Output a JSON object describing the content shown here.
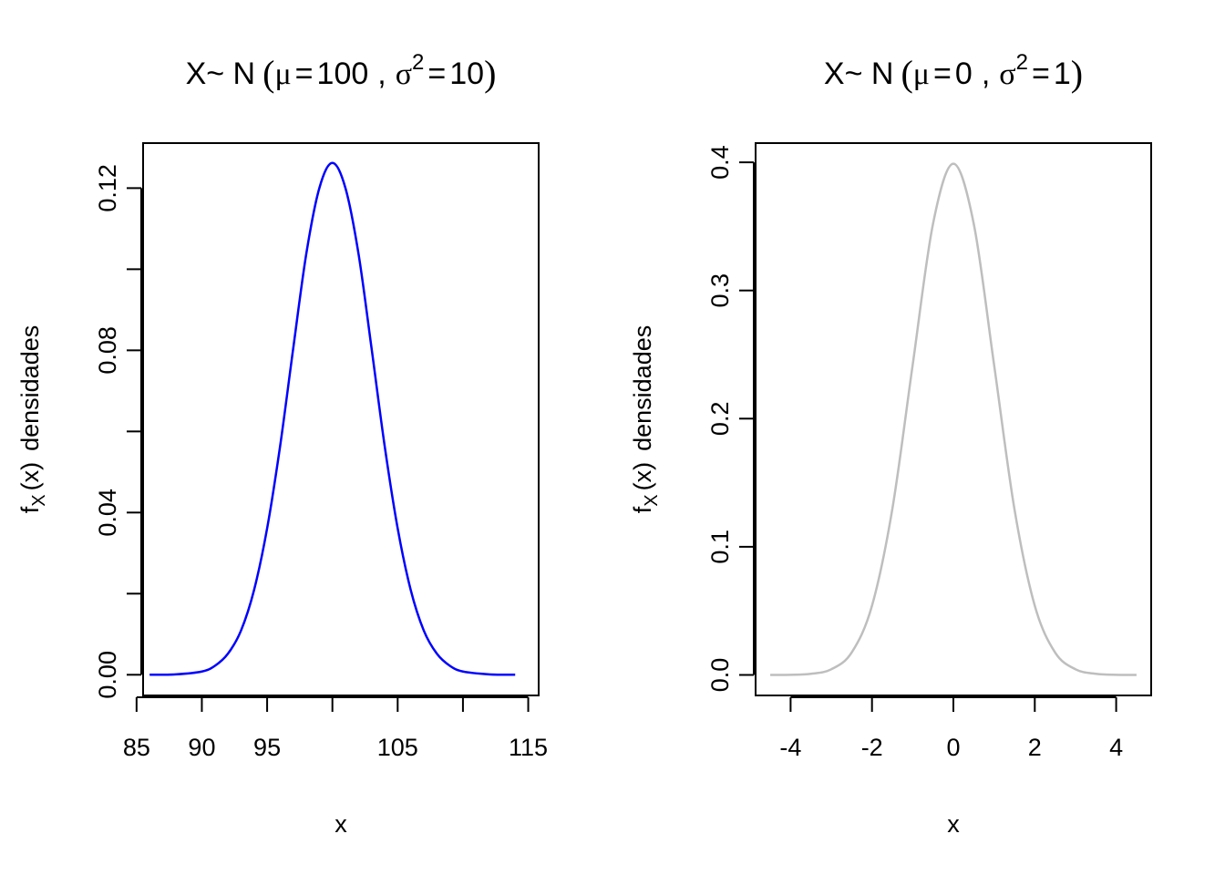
{
  "chart_data": [
    {
      "type": "line",
      "title": {
        "prefix": "X~ N",
        "open": "(",
        "mu_sym": "μ",
        "eq1": "=",
        "mu_val": "100",
        "comma": ",",
        "sigma_sym": "σ",
        "sup": "2",
        "eq2": "=",
        "sigma_val": "10",
        "close": ")"
      },
      "xlabel": "x",
      "ylabel": {
        "f": "f",
        "sub": "X",
        "arg": "(x)",
        "word": "densidades"
      },
      "xlim": [
        85.5,
        115.8
      ],
      "ylim": [
        -0.0051,
        0.1311
      ],
      "xticks": [
        85,
        90,
        95,
        100,
        105,
        110,
        115
      ],
      "xtick_labels": [
        "85",
        "90",
        "95",
        "",
        "105",
        "",
        "115"
      ],
      "yticks": [
        0,
        0.02,
        0.04,
        0.06,
        0.08,
        0.1,
        0.12
      ],
      "ytick_labels": [
        "0.00",
        "",
        "0.04",
        "",
        "0.08",
        "",
        "0.12"
      ],
      "series": [
        {
          "color": "#0000ff",
          "x": [
            86.0,
            88.0,
            90.0,
            91.0,
            92.0,
            93.0,
            94.0,
            95.0,
            96.0,
            97.0,
            98.0,
            99.0,
            100.0,
            101.0,
            102.0,
            103.0,
            104.0,
            105.0,
            106.0,
            107.0,
            108.0,
            109.0,
            110.0,
            112.0,
            114.0
          ],
          "y": [
            0.0,
            0.0001,
            0.0008,
            0.0022,
            0.0052,
            0.0109,
            0.0209,
            0.0361,
            0.0565,
            0.0805,
            0.1038,
            0.12,
            0.1262,
            0.12,
            0.1038,
            0.0805,
            0.0565,
            0.0361,
            0.0209,
            0.0109,
            0.0052,
            0.0022,
            0.0008,
            0.0001,
            0.0
          ]
        }
      ]
    },
    {
      "type": "line",
      "title": {
        "prefix": "X~ N",
        "open": "(",
        "mu_sym": "μ",
        "eq1": "=",
        "mu_val": "0",
        "comma": ",",
        "sigma_sym": "σ",
        "sup": "2",
        "eq2": "=",
        "sigma_val": "1",
        "close": ")"
      },
      "xlabel": "x",
      "ylabel": {
        "f": "f",
        "sub": "X",
        "arg": "(x)",
        "word": "densidades"
      },
      "xlim": [
        -4.86,
        4.86
      ],
      "ylim": [
        -0.016,
        0.415
      ],
      "xticks": [
        -4,
        -2,
        0,
        2,
        4
      ],
      "xtick_labels": [
        "-4",
        "-2",
        "0",
        "2",
        "4"
      ],
      "yticks": [
        0,
        0.1,
        0.2,
        0.3,
        0.4
      ],
      "ytick_labels": [
        "0.0",
        "0.1",
        "0.2",
        "0.3",
        "0.4"
      ],
      "series": [
        {
          "color": "#bebebe",
          "x": [
            -4.5,
            -4.0,
            -3.5,
            -3.0,
            -2.5,
            -2.0,
            -1.5,
            -1.0,
            -0.5,
            0.0,
            0.5,
            1.0,
            1.5,
            2.0,
            2.5,
            3.0,
            3.5,
            4.0,
            4.5
          ],
          "y": [
            0.0,
            0.0001,
            0.0009,
            0.0044,
            0.0175,
            0.054,
            0.1295,
            0.242,
            0.3521,
            0.3989,
            0.3521,
            0.242,
            0.1295,
            0.054,
            0.0175,
            0.0044,
            0.0009,
            0.0001,
            0.0
          ]
        }
      ]
    }
  ]
}
